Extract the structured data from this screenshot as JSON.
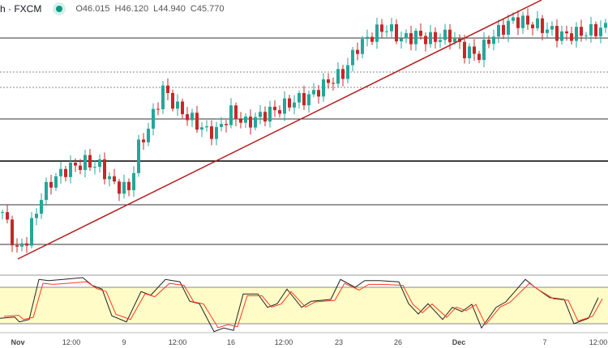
{
  "header": {
    "symbol": "h · FXCM",
    "open": "O46.015",
    "high": "H46.120",
    "low": "L44.940",
    "close": "C45.770"
  },
  "colors": {
    "up": "#26a69a",
    "down": "#c62828",
    "trendline": "#b71c1c",
    "stoch_k": "#222222",
    "stoch_d": "#ff3b1f",
    "band": "#fffcc8"
  },
  "chart_data": {
    "type": "candlestick",
    "x_ticks": [
      "Nov",
      "12:00",
      "9",
      "12:00",
      "16",
      "12:00",
      "23",
      "26",
      "Dec",
      "7",
      "12:00"
    ],
    "closes": {
      "bar": [
        0,
        3,
        5,
        8,
        10,
        13,
        17,
        20,
        23,
        26,
        28,
        30,
        33,
        36,
        38,
        42,
        44,
        47,
        50,
        53,
        57,
        60,
        63,
        67,
        70,
        73,
        77,
        79,
        82,
        85,
        88,
        92,
        95,
        98,
        100,
        102,
        105,
        109,
        112,
        115,
        118,
        121,
        124
      ],
      "price": [
        45.72,
        45.09,
        45.28,
        45.97,
        46.22,
        46.41,
        46.53,
        46.47,
        46.16,
        46.09,
        46.78,
        47.09,
        47.72,
        47.41,
        47.28,
        47.03,
        47.03,
        47.34,
        47.16,
        47.28,
        47.41,
        47.53,
        47.59,
        47.84,
        47.97,
        48.41,
        48.66,
        48.72,
        48.53,
        48.59,
        48.53,
        48.59,
        48.34,
        48.28,
        48.53,
        48.66,
        48.84,
        48.78,
        48.69,
        48.59,
        48.62,
        48.66,
        48.72
      ]
    },
    "stochastic": {
      "overbought": 80,
      "oversold": 20,
      "bar": [
        0,
        3,
        4,
        6,
        8,
        10,
        13,
        17,
        19,
        21,
        23,
        26,
        29,
        31,
        34,
        37,
        39,
        41,
        44,
        46,
        48,
        50,
        53,
        55,
        57,
        59,
        62,
        64,
        68,
        70,
        73,
        75,
        78,
        82,
        84,
        86,
        88,
        91,
        93,
        95,
        97,
        99,
        102,
        104,
        108,
        110,
        113,
        116,
        118,
        121,
        123
      ],
      "k": [
        29,
        31,
        23,
        27,
        93,
        91,
        93,
        96,
        83,
        77,
        33,
        23,
        73,
        67,
        93,
        89,
        57,
        53,
        7,
        13,
        9,
        69,
        69,
        47,
        53,
        77,
        47,
        57,
        60,
        93,
        80,
        91,
        91,
        89,
        53,
        36,
        53,
        27,
        47,
        40,
        52,
        13,
        47,
        56,
        93,
        80,
        63,
        60,
        20,
        29,
        63
      ]
    }
  }
}
